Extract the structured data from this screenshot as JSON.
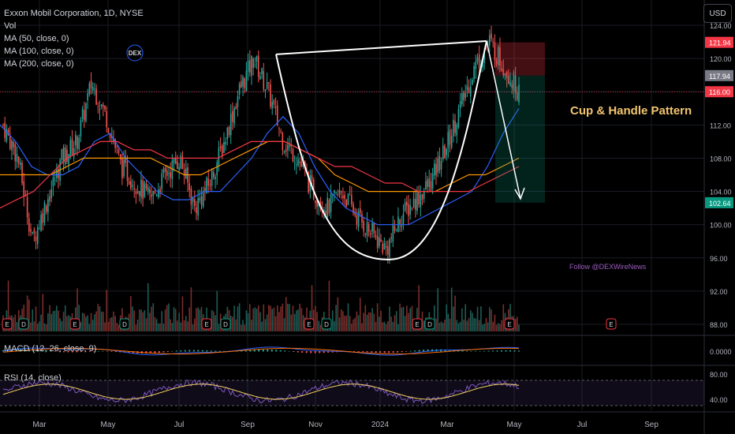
{
  "legend": {
    "symbol": "Exxon Mobil Corporation, 1D, NYSE",
    "vol": "Vol",
    "ma50": "MA (50, close, 0)",
    "ma100": "MA (100, close, 0)",
    "ma200": "MA (200, close, 0)"
  },
  "logo": "DEX",
  "currency": "USD",
  "annotation": "Cup & Handle Pattern",
  "follow": "Follow @DEXWireNews",
  "macd": {
    "label": "MACD (12, 26, close, 9)",
    "axis": "0.0000"
  },
  "rsi": {
    "label": "RSI (14, close)",
    "axis": [
      "80.00",
      "40.00"
    ]
  },
  "colors": {
    "up": "#26a69a",
    "down": "#ef5350",
    "ma50": "#2962ff",
    "ma100": "#ff9800",
    "ma200": "#f23645",
    "annotation": "#f2c46d"
  },
  "chart_data": {
    "type": "candlestick",
    "title": "Exxon Mobil Corporation, 1D, NYSE",
    "x_ticks": [
      "Mar",
      "May",
      "Jul",
      "Sep",
      "Nov",
      "2024",
      "Mar",
      "May",
      "Jul",
      "Sep"
    ],
    "y_ticks": [
      "124.00",
      "120.00",
      "116.00",
      "112.00",
      "108.00",
      "104.00",
      "100.00",
      "96.00",
      "92.00",
      "88.00"
    ],
    "ylim": [
      86.5,
      125
    ],
    "price_labels": [
      {
        "value": 121.94,
        "label": "121.94",
        "color": "#f23645"
      },
      {
        "value": 117.94,
        "label": "117.94",
        "color": "#787b86"
      },
      {
        "value": 116.0,
        "label": "116.00",
        "color": "#f23645"
      },
      {
        "value": 102.64,
        "label": "102.64",
        "color": "#089981"
      }
    ],
    "price_series": [
      [
        "Mar",
        112
      ],
      [
        "Mar",
        108
      ],
      [
        "Mar",
        98
      ],
      [
        "Mar",
        103
      ],
      [
        "Mar",
        108
      ],
      [
        "Mar",
        110
      ],
      [
        "May",
        117
      ],
      [
        "May",
        113
      ],
      [
        "May",
        107
      ],
      [
        "May",
        105
      ],
      [
        "Jul",
        103
      ],
      [
        "Jul",
        106
      ],
      [
        "Jul",
        108
      ],
      [
        "Jul",
        102
      ],
      [
        "Jul",
        105
      ],
      [
        "Sep",
        110
      ],
      [
        "Sep",
        116
      ],
      [
        "Sep",
        120
      ],
      [
        "Sep",
        116
      ],
      [
        "Sep",
        110
      ],
      [
        "Nov",
        108
      ],
      [
        "Nov",
        104
      ],
      [
        "Nov",
        102
      ],
      [
        "Nov",
        104
      ],
      [
        "Nov",
        101
      ],
      [
        "2024",
        99
      ],
      [
        "2024",
        97
      ],
      [
        "2024",
        101
      ],
      [
        "2024",
        103
      ],
      [
        "Mar",
        105
      ],
      [
        "Mar",
        109
      ],
      [
        "Mar",
        114
      ],
      [
        "Mar",
        119
      ],
      [
        "May",
        122
      ],
      [
        "May",
        119
      ],
      [
        "May",
        116
      ]
    ],
    "moving_averages": [
      {
        "name": "MA (50, close, 0)",
        "color": "#2962ff",
        "values": [
          112,
          110,
          107,
          106,
          106,
          107,
          110,
          111,
          108,
          106,
          104,
          103,
          103,
          104,
          104,
          106,
          108,
          111,
          113,
          111,
          107,
          104,
          102,
          101,
          100,
          100,
          100,
          101,
          102,
          103,
          104,
          107,
          111,
          114
        ]
      },
      {
        "name": "MA (100, close, 0)",
        "color": "#ff9800",
        "values": [
          106,
          106,
          106,
          106,
          107,
          108,
          108,
          108,
          108,
          108,
          107,
          106,
          106,
          107,
          108,
          109,
          110,
          110,
          109,
          108,
          106,
          105,
          104,
          104,
          104,
          104,
          104,
          105,
          106,
          106,
          107,
          108
        ]
      },
      {
        "name": "MA (200, close, 0)",
        "color": "#f23645",
        "values": [
          102,
          103,
          104,
          106,
          108,
          109,
          110,
          110,
          109,
          109,
          108,
          108,
          108,
          108,
          109,
          110,
          110,
          110,
          109,
          108,
          107,
          107,
          106,
          105,
          105,
          104,
          104,
          104,
          104,
          105,
          106,
          107
        ]
      }
    ],
    "macd": {
      "zero_label": "0.0000"
    },
    "rsi": {
      "levels": [
        80,
        40
      ]
    },
    "pattern": {
      "name": "Cup & Handle Pattern",
      "rim_left": 120.5,
      "rim_right": 122.1,
      "bottom": 95.8,
      "short_position": {
        "stop": 121.94,
        "entry": 117.94,
        "target": 102.64
      }
    },
    "grid": true,
    "legend_position": "top-left"
  }
}
